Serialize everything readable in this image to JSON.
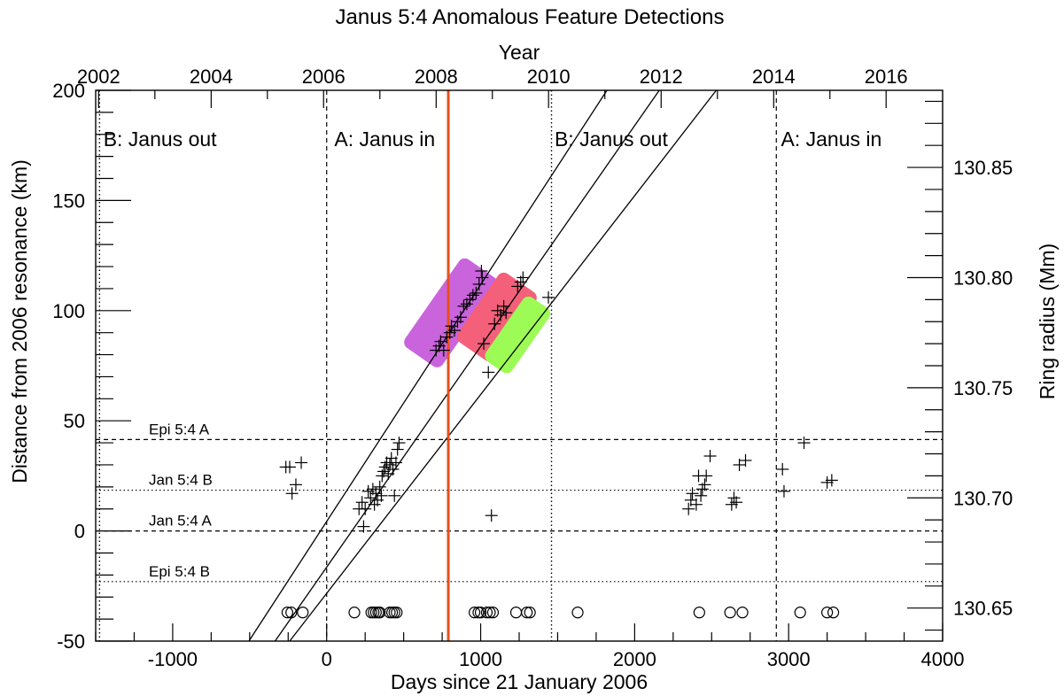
{
  "chart_data": {
    "type": "scatter",
    "title": "Janus 5:4 Anomalous Feature Detections",
    "xlabel": "Days since 21 January 2006",
    "ylabel": "Distance from 2006 resonance (km)",
    "top_xlabel": "Year",
    "right_ylabel": "Ring radius (Mm)",
    "xlim": [
      -1500,
      4000
    ],
    "ylim": [
      -50,
      200
    ],
    "x_ticks": [
      -1000,
      0,
      1000,
      2000,
      3000,
      4000
    ],
    "x_tick_labels": [
      "-1000",
      "0",
      "1000",
      "2000",
      "3000",
      "4000"
    ],
    "y_ticks": [
      -50,
      0,
      50,
      100,
      150,
      200
    ],
    "y_tick_labels": [
      "-50",
      "0",
      "50",
      "100",
      "150",
      "200"
    ],
    "top_ticks_days": [
      -1481,
      -750,
      -20,
      711,
      1441,
      2172,
      2903,
      3633
    ],
    "top_tick_labels": [
      "2002",
      "2004",
      "2006",
      "2008",
      "2010",
      "2012",
      "2014",
      "2016"
    ],
    "right_ticks_km": [
      -35,
      15,
      65,
      115,
      165
    ],
    "right_tick_labels": [
      "130.65",
      "130.70",
      "130.75",
      "130.80",
      "130.85"
    ],
    "region_boundaries_days": [
      0,
      2920
    ],
    "dotted_boundaries_days": [
      -1475,
      1460
    ],
    "region_labels": [
      {
        "x": -1450,
        "text": "B: Janus out"
      },
      {
        "x": 50,
        "text": "A: Janus in"
      },
      {
        "x": 1480,
        "text": "B: Janus out"
      },
      {
        "x": 2950,
        "text": "A: Janus in"
      }
    ],
    "reference_lines": [
      {
        "y": 41.5,
        "label": "Epi 5:4 A",
        "style": "dashed"
      },
      {
        "y": 18.5,
        "label": "Jan 5:4 B",
        "style": "dotted"
      },
      {
        "y": 0,
        "label": "Jan 5:4 A",
        "style": "dashed"
      },
      {
        "y": -23,
        "label": "Epi 5:4 B",
        "style": "dotted"
      }
    ],
    "highlight_line": {
      "x": 790,
      "color": "#e8501a"
    },
    "drift_lines": [
      {
        "x0": -505,
        "y0": -50,
        "x1": 1820,
        "y1": 200
      },
      {
        "x0": -335,
        "y0": -50,
        "x1": 2160,
        "y1": 200
      },
      {
        "x0": -240,
        "y0": -50,
        "x1": 2530,
        "y1": 200
      }
    ],
    "highlight_boxes": [
      {
        "x": 807,
        "y": 99,
        "length": 450,
        "width": 86,
        "color": "#c964dc"
      },
      {
        "x": 1105,
        "y": 97,
        "length": 300,
        "width": 86,
        "color": "#f4607a"
      },
      {
        "x": 1240,
        "y": 89,
        "length": 265,
        "width": 60,
        "color": "#9dfb55"
      }
    ],
    "detections": [
      {
        "x": -265,
        "y": 29
      },
      {
        "x": -240,
        "y": 29
      },
      {
        "x": -225,
        "y": 17
      },
      {
        "x": -200,
        "y": 21
      },
      {
        "x": -165,
        "y": 31
      },
      {
        "x": 210,
        "y": 10
      },
      {
        "x": 230,
        "y": 13
      },
      {
        "x": 240,
        "y": 2
      },
      {
        "x": 250,
        "y": 10
      },
      {
        "x": 270,
        "y": 18
      },
      {
        "x": 285,
        "y": 15
      },
      {
        "x": 300,
        "y": 19
      },
      {
        "x": 310,
        "y": 12
      },
      {
        "x": 320,
        "y": 17
      },
      {
        "x": 330,
        "y": 14
      },
      {
        "x": 345,
        "y": 20
      },
      {
        "x": 355,
        "y": 16
      },
      {
        "x": 360,
        "y": 25
      },
      {
        "x": 370,
        "y": 27
      },
      {
        "x": 380,
        "y": 29
      },
      {
        "x": 390,
        "y": 31
      },
      {
        "x": 400,
        "y": 26
      },
      {
        "x": 410,
        "y": 30
      },
      {
        "x": 420,
        "y": 33
      },
      {
        "x": 430,
        "y": 28
      },
      {
        "x": 440,
        "y": 16
      },
      {
        "x": 450,
        "y": 31
      },
      {
        "x": 460,
        "y": 37
      },
      {
        "x": 470,
        "y": 40
      },
      {
        "x": 710,
        "y": 82
      },
      {
        "x": 730,
        "y": 84
      },
      {
        "x": 740,
        "y": 86
      },
      {
        "x": 760,
        "y": 82
      },
      {
        "x": 780,
        "y": 88
      },
      {
        "x": 800,
        "y": 90
      },
      {
        "x": 810,
        "y": 93
      },
      {
        "x": 830,
        "y": 91
      },
      {
        "x": 850,
        "y": 95
      },
      {
        "x": 870,
        "y": 97
      },
      {
        "x": 890,
        "y": 102
      },
      {
        "x": 910,
        "y": 103
      },
      {
        "x": 930,
        "y": 105
      },
      {
        "x": 950,
        "y": 107
      },
      {
        "x": 970,
        "y": 108
      },
      {
        "x": 990,
        "y": 112
      },
      {
        "x": 1010,
        "y": 115
      },
      {
        "x": 1005,
        "y": 118
      },
      {
        "x": 1020,
        "y": 85
      },
      {
        "x": 1090,
        "y": 94
      },
      {
        "x": 1110,
        "y": 100
      },
      {
        "x": 1130,
        "y": 98
      },
      {
        "x": 1150,
        "y": 102
      },
      {
        "x": 1165,
        "y": 99
      },
      {
        "x": 1240,
        "y": 111
      },
      {
        "x": 1260,
        "y": 113
      },
      {
        "x": 1275,
        "y": 115
      },
      {
        "x": 1050,
        "y": 72
      },
      {
        "x": 1440,
        "y": 106
      },
      {
        "x": 1070,
        "y": 7
      },
      {
        "x": 2350,
        "y": 10
      },
      {
        "x": 2365,
        "y": 14
      },
      {
        "x": 2375,
        "y": 17
      },
      {
        "x": 2400,
        "y": 12
      },
      {
        "x": 2415,
        "y": 25
      },
      {
        "x": 2430,
        "y": 16
      },
      {
        "x": 2440,
        "y": 19
      },
      {
        "x": 2455,
        "y": 21
      },
      {
        "x": 2465,
        "y": 25
      },
      {
        "x": 2490,
        "y": 34
      },
      {
        "x": 2630,
        "y": 12
      },
      {
        "x": 2645,
        "y": 15
      },
      {
        "x": 2660,
        "y": 13
      },
      {
        "x": 2680,
        "y": 30
      },
      {
        "x": 2720,
        "y": 32
      },
      {
        "x": 2960,
        "y": 28
      },
      {
        "x": 2970,
        "y": 18
      },
      {
        "x": 3100,
        "y": 40
      },
      {
        "x": 3250,
        "y": 22
      },
      {
        "x": 3280,
        "y": 23
      }
    ],
    "circle_y": -37,
    "observations_x": [
      -255,
      -230,
      -155,
      180,
      290,
      305,
      320,
      335,
      345,
      410,
      425,
      440,
      455,
      960,
      985,
      1000,
      1040,
      1060,
      1080,
      1230,
      1300,
      1320,
      1630,
      2420,
      2620,
      2700,
      3075,
      3250,
      3290
    ]
  }
}
